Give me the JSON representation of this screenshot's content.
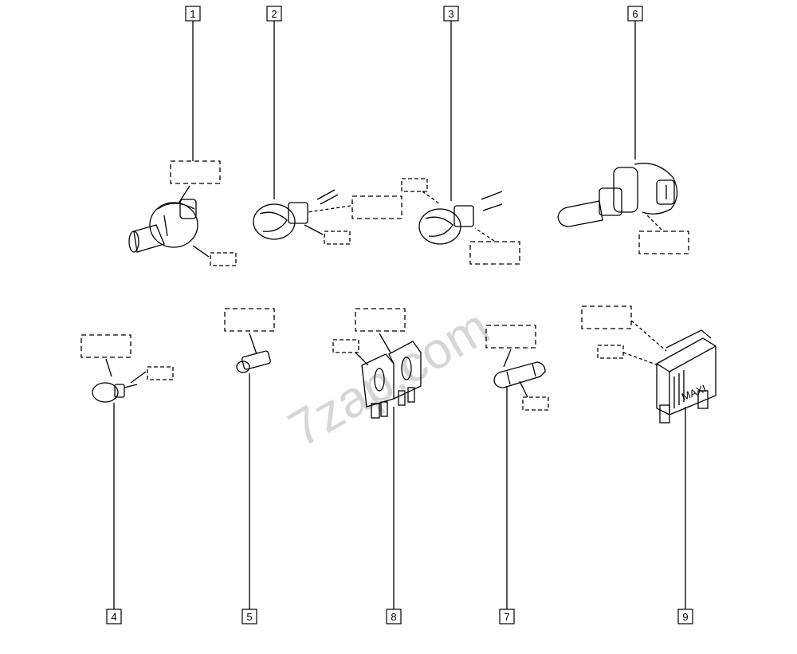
{
  "callouts": [
    {
      "id": "1",
      "label": "1"
    },
    {
      "id": "2",
      "label": "2"
    },
    {
      "id": "3",
      "label": "3"
    },
    {
      "id": "6",
      "label": "6"
    },
    {
      "id": "4",
      "label": "4"
    },
    {
      "id": "5",
      "label": "5"
    },
    {
      "id": "8",
      "label": "8"
    },
    {
      "id": "7",
      "label": "7"
    },
    {
      "id": "9",
      "label": "9"
    }
  ],
  "fuse_marking": "MAXI",
  "watermark": "7zap.com"
}
